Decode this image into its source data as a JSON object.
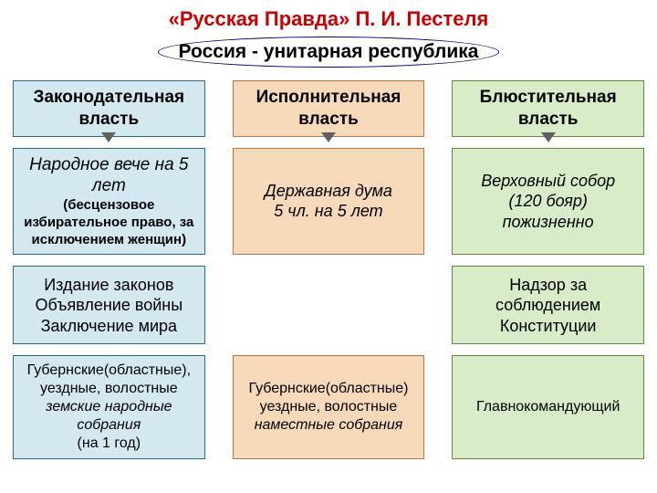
{
  "title": "«Русская Правда» П. И. Пестеля",
  "subtitle": "Россия - унитарная республика",
  "colors": {
    "title_color": "#cc0000",
    "subtitle_bg": "#ffffff",
    "col1_bg": "#d4e8f0",
    "col1_border": "#2a6a88",
    "col2_bg": "#f5d9b8",
    "col2_border": "#b8763a",
    "col3_bg": "#d8ecc8",
    "col3_border": "#5a8a3a",
    "arrow": "#606060"
  },
  "fonts": {
    "title_size": 22,
    "subtitle_size": 21,
    "header_size": 19,
    "body_size": 18,
    "subnote_size": 15,
    "small_size": 16
  },
  "columns": {
    "c1": {
      "header": "Законодательная власть",
      "body_title": "Народное вече на 5 лет",
      "body_sub": "(бесцензовое избирательное право, за исключением женщин)",
      "functions": "Издание законов\nОбъявление войны\nЗаключение мира",
      "local_html": "Губернские(областные), уездные, волостные <i>земские народные собрания</i> (на 1  год)"
    },
    "c2": {
      "header": "Исполнительная власть",
      "body_title": "Державная дума\n5 чл. на 5 лет",
      "local_html": "Губернские(областные) уездные, волостные <i>наместные собрания</i>",
      "commander": "Главнокомандующий"
    },
    "c3": {
      "header": "Блюстительная власть",
      "body_title": "Верховный собор\n(120 бояр)\nпожизненно",
      "functions": "Надзор  за соблюдением Конституции"
    }
  }
}
